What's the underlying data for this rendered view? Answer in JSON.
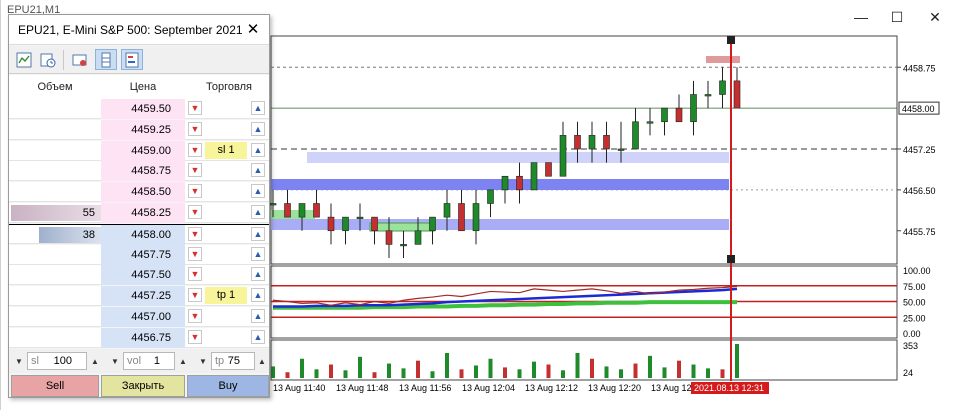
{
  "window": {
    "title_strip": "EPU21,M1",
    "minimize_glyph": "—",
    "maximize_glyph": "☐",
    "close_glyph": "✕"
  },
  "dom": {
    "title": "EPU21, E-Mini S&P 500: September 2021",
    "close_glyph": "✕",
    "columns": {
      "volume": "Объем",
      "price": "Цена",
      "trade": "Торговля"
    },
    "rows": [
      {
        "volume": "",
        "price": "4459.50",
        "side": "ask",
        "order": "",
        "vol_fill": 0
      },
      {
        "volume": "",
        "price": "4459.25",
        "side": "ask",
        "order": "",
        "vol_fill": 0
      },
      {
        "volume": "",
        "price": "4459.00",
        "side": "ask",
        "order": "sl 1",
        "vol_fill": 0
      },
      {
        "volume": "",
        "price": "4458.75",
        "side": "ask",
        "order": "",
        "vol_fill": 0
      },
      {
        "volume": "",
        "price": "4458.50",
        "side": "ask",
        "order": "",
        "vol_fill": 0
      },
      {
        "volume": "55",
        "price": "4458.25",
        "side": "ask",
        "order": "",
        "vol_fill": 1.0
      },
      {
        "volume": "38",
        "price": "4458.00",
        "side": "bid",
        "order": "",
        "vol_fill": 0.69
      },
      {
        "volume": "",
        "price": "4457.75",
        "side": "bid",
        "order": "",
        "vol_fill": 0
      },
      {
        "volume": "",
        "price": "4457.50",
        "side": "bid",
        "order": "",
        "vol_fill": 0
      },
      {
        "volume": "",
        "price": "4457.25",
        "side": "bid",
        "order": "tp 1",
        "vol_fill": 0
      },
      {
        "volume": "",
        "price": "4457.00",
        "side": "bid",
        "order": "",
        "vol_fill": 0
      },
      {
        "volume": "",
        "price": "4456.75",
        "side": "bid",
        "order": "",
        "vol_fill": 0
      }
    ],
    "inputs": {
      "sl": {
        "label": "sl",
        "value": "100"
      },
      "vol": {
        "label": "vol",
        "value": "1"
      },
      "tp": {
        "label": "tp",
        "value": "75"
      }
    },
    "buttons": {
      "sell": "Sell",
      "close": "Закрыть",
      "buy": "Buy"
    },
    "colors": {
      "sell": "#e8a4a4",
      "close": "#e2e4a0",
      "buy": "#9eb6e4"
    }
  },
  "price_axis": {
    "labels": [
      "4458.75",
      "4457.25",
      "4456.50",
      "4455.75"
    ],
    "current_label": "4458.00"
  },
  "indicator_axis": {
    "labels": [
      "100.00",
      "75.00",
      "50.00",
      "25.00",
      "0.00"
    ]
  },
  "volume_axis": {
    "labels": [
      "353",
      "24"
    ]
  },
  "time_axis": {
    "labels": [
      "13 Aug 11:40",
      "13 Aug 11:48",
      "13 Aug 11:56",
      "13 Aug 12:04",
      "13 Aug 12:12",
      "13 Aug 12:20",
      "13 Aug 12:"
    ],
    "cursor_label": "2021.08.13 12:31"
  },
  "chart_data": {
    "type": "candlestick",
    "candles": [
      [
        4456.25,
        4456.5,
        4456.0,
        4456.25
      ],
      [
        4456.25,
        4456.5,
        4456.0,
        4456.0
      ],
      [
        4456.0,
        4456.25,
        4455.75,
        4456.25
      ],
      [
        4456.25,
        4456.5,
        4456.0,
        4456.0
      ],
      [
        4456.0,
        4456.25,
        4455.5,
        4455.75
      ],
      [
        4455.75,
        4456.0,
        4455.5,
        4456.0
      ],
      [
        4456.0,
        4456.25,
        4455.75,
        4456.0
      ],
      [
        4456.0,
        4456.0,
        4455.5,
        4455.75
      ],
      [
        4455.75,
        4456.0,
        4455.25,
        4455.5
      ],
      [
        4455.5,
        4455.75,
        4455.25,
        4455.5
      ],
      [
        4455.5,
        4456.0,
        4455.5,
        4455.75
      ],
      [
        4455.75,
        4456.0,
        4455.5,
        4456.0
      ],
      [
        4456.0,
        4456.5,
        4455.75,
        4456.25
      ],
      [
        4456.25,
        4456.5,
        4455.75,
        4455.75
      ],
      [
        4455.75,
        4456.5,
        4455.5,
        4456.25
      ],
      [
        4456.25,
        4456.5,
        4456.0,
        4456.5
      ],
      [
        4456.5,
        4456.75,
        4456.25,
        4456.75
      ],
      [
        4456.75,
        4457.0,
        4456.25,
        4456.5
      ],
      [
        4456.5,
        4457.0,
        4456.5,
        4457.0
      ],
      [
        4457.0,
        4457.0,
        4456.75,
        4456.75
      ],
      [
        4456.75,
        4457.75,
        4456.75,
        4457.5
      ],
      [
        4457.5,
        4457.75,
        4457.0,
        4457.25
      ],
      [
        4457.25,
        4457.75,
        4457.0,
        4457.5
      ],
      [
        4457.5,
        4457.75,
        4457.0,
        4457.25
      ],
      [
        4457.25,
        4457.75,
        4457.0,
        4457.25
      ],
      [
        4457.25,
        4458.0,
        4457.25,
        4457.75
      ],
      [
        4457.75,
        4458.0,
        4457.5,
        4457.75
      ],
      [
        4457.75,
        4458.0,
        4457.5,
        4458.0
      ],
      [
        4458.0,
        4458.25,
        4457.75,
        4457.75
      ],
      [
        4457.75,
        4458.5,
        4457.5,
        4458.25
      ],
      [
        4458.25,
        4458.5,
        4458.0,
        4458.25
      ],
      [
        4458.25,
        4458.75,
        4458.0,
        4458.5
      ],
      [
        4458.5,
        4458.75,
        4458.0,
        4458.0
      ]
    ],
    "volume_max": 353
  }
}
